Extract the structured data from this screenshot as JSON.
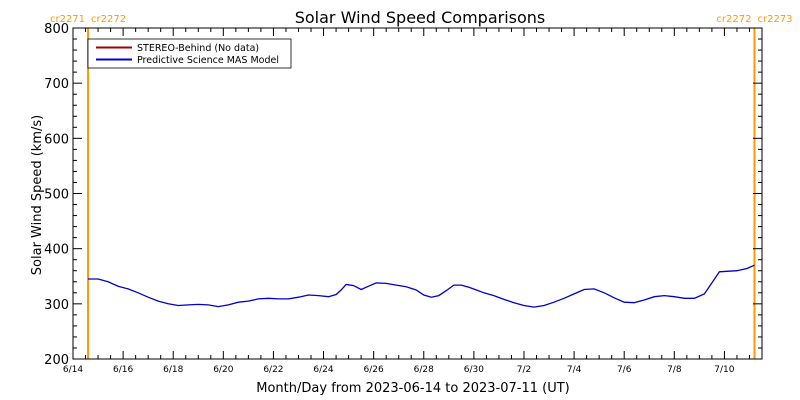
{
  "chart_data": {
    "type": "line",
    "title": "Solar Wind Speed Comparisons",
    "xlabel": "Month/Day from 2023-06-14 to 2023-07-11 (UT)",
    "ylabel": "Solar Wind Speed (km/s)",
    "xlim_days": [
      0,
      27.5
    ],
    "ylim": [
      200,
      800
    ],
    "yticks": [
      200,
      300,
      400,
      500,
      600,
      700,
      800
    ],
    "xticks": [
      {
        "day": 0,
        "label": "6/14"
      },
      {
        "day": 2,
        "label": "6/16"
      },
      {
        "day": 4,
        "label": "6/18"
      },
      {
        "day": 6,
        "label": "6/20"
      },
      {
        "day": 8,
        "label": "6/22"
      },
      {
        "day": 10,
        "label": "6/24"
      },
      {
        "day": 12,
        "label": "6/26"
      },
      {
        "day": 14,
        "label": "6/28"
      },
      {
        "day": 16,
        "label": "6/30"
      },
      {
        "day": 18,
        "label": "7/2"
      },
      {
        "day": 20,
        "label": "7/4"
      },
      {
        "day": 22,
        "label": "7/6"
      },
      {
        "day": 24,
        "label": "7/8"
      },
      {
        "day": 26,
        "label": "7/10"
      }
    ],
    "carrington_markers": [
      {
        "day": 0.6,
        "labels": [
          "cr2271",
          "cr2272"
        ]
      },
      {
        "day": 27.2,
        "labels": [
          "cr2272",
          "cr2273"
        ]
      }
    ],
    "series": [
      {
        "name": "STEREO-Behind (No data)",
        "color": "#aa0000",
        "x": [],
        "y": []
      },
      {
        "name": "Predictive Science MAS Model",
        "color": "#0000cc",
        "x": [
          0.6,
          1.0,
          1.4,
          1.8,
          2.2,
          2.6,
          3.0,
          3.4,
          3.8,
          4.2,
          4.6,
          5.0,
          5.4,
          5.8,
          6.2,
          6.6,
          7.0,
          7.4,
          7.8,
          8.2,
          8.6,
          9.0,
          9.4,
          9.8,
          10.2,
          10.5,
          10.7,
          10.9,
          11.2,
          11.5,
          11.8,
          12.1,
          12.5,
          12.9,
          13.3,
          13.7,
          14.0,
          14.3,
          14.6,
          14.9,
          15.2,
          15.5,
          15.8,
          16.1,
          16.4,
          16.8,
          17.2,
          17.6,
          18.0,
          18.4,
          18.8,
          19.2,
          19.6,
          20.0,
          20.4,
          20.8,
          21.2,
          21.6,
          22.0,
          22.4,
          22.8,
          23.2,
          23.6,
          24.0,
          24.4,
          24.8,
          25.2,
          25.5,
          25.8,
          26.1,
          26.5,
          26.9,
          27.2
        ],
        "y": [
          345,
          345,
          340,
          332,
          327,
          320,
          312,
          305,
          300,
          297,
          298,
          299,
          298,
          295,
          298,
          303,
          305,
          309,
          310,
          309,
          309,
          312,
          316,
          315,
          313,
          317,
          325,
          335,
          333,
          326,
          332,
          338,
          337,
          334,
          331,
          325,
          316,
          312,
          315,
          324,
          334,
          334,
          330,
          325,
          320,
          315,
          308,
          302,
          297,
          294,
          297,
          303,
          310,
          318,
          326,
          327,
          320,
          311,
          303,
          302,
          307,
          313,
          315,
          313,
          310,
          310,
          318,
          338,
          358,
          359,
          360,
          364,
          370
        ]
      }
    ],
    "legend": "top-left",
    "grid": false
  }
}
